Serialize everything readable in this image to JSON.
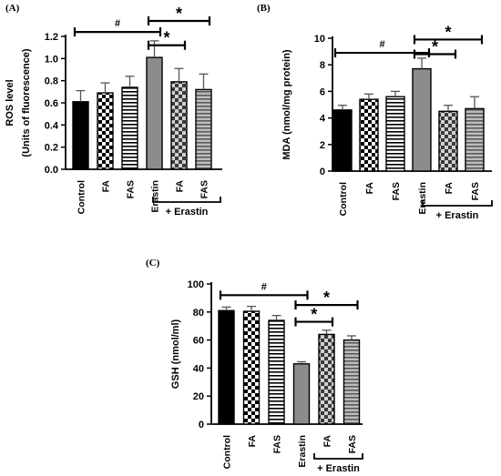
{
  "chart_data": [
    {
      "panel_label": "(A)",
      "type": "bar",
      "categories": [
        "Control",
        "FA",
        "FAS",
        "Erastin",
        "FA",
        "FAS"
      ],
      "values": [
        0.61,
        0.69,
        0.74,
        1.01,
        0.79,
        0.72
      ],
      "errors": [
        0.1,
        0.09,
        0.1,
        0.15,
        0.12,
        0.14
      ],
      "patterns": [
        "black",
        "checker",
        "hstripe",
        "gray",
        "darkchecker",
        "grayhstripe"
      ],
      "ylabel_line1": "ROS level",
      "ylabel_line2": "(Units of fluorescence)",
      "ylim": [
        0,
        1.2
      ],
      "yticks": [
        "0.0",
        "0.2",
        "0.4",
        "0.6",
        "0.8",
        "1.0",
        "1.2"
      ],
      "ytick_values": [
        0,
        0.2,
        0.4,
        0.6,
        0.8,
        1.0,
        1.2
      ],
      "group_label": "+ Erastin",
      "annotations": [
        {
          "symbol": "#",
          "from": 0,
          "to": 3,
          "level": 1.24
        },
        {
          "symbol": "*",
          "from": 3,
          "to": 4,
          "level": 1.12
        },
        {
          "symbol": "*",
          "from": 3,
          "to": 5,
          "level": 1.34
        }
      ]
    },
    {
      "panel_label": "(B)",
      "type": "bar",
      "categories": [
        "Control",
        "FA",
        "FAS",
        "Erastin",
        "FA",
        "FAS"
      ],
      "values": [
        4.6,
        5.4,
        5.6,
        7.7,
        4.5,
        4.7
      ],
      "errors": [
        0.35,
        0.4,
        0.4,
        0.8,
        0.45,
        0.9
      ],
      "patterns": [
        "black",
        "checker",
        "hstripe",
        "gray",
        "darkchecker",
        "grayhstripe"
      ],
      "ylabel_line1": "MDA (nmol/mg protein)",
      "ylabel_line2": "",
      "ylim": [
        0,
        10
      ],
      "yticks": [
        "0",
        "2",
        "4",
        "6",
        "8",
        "10"
      ],
      "ytick_values": [
        0,
        2,
        4,
        6,
        8,
        10
      ],
      "group_label": "+ Erastin",
      "annotations": [
        {
          "symbol": "#",
          "from": 0,
          "to": 3,
          "level": 8.9
        },
        {
          "symbol": "*",
          "from": 3,
          "to": 4,
          "level": 8.8
        },
        {
          "symbol": "*",
          "from": 3,
          "to": 5,
          "level": 9.9
        }
      ]
    },
    {
      "panel_label": "(C)",
      "type": "bar",
      "categories": [
        "Control",
        "FA",
        "FAS",
        "Erastin",
        "FA",
        "FAS"
      ],
      "values": [
        81,
        80.5,
        74,
        43,
        64,
        60
      ],
      "errors": [
        2.5,
        3.5,
        3.5,
        1.5,
        3,
        3
      ],
      "patterns": [
        "black",
        "checker",
        "hstripe",
        "gray",
        "darkchecker",
        "grayhstripe"
      ],
      "ylabel_line1": "GSH (nmol/ml)",
      "ylabel_line2": "",
      "ylim": [
        0,
        100
      ],
      "yticks": [
        "0",
        "20",
        "40",
        "60",
        "80",
        "100"
      ],
      "ytick_values": [
        0,
        20,
        40,
        60,
        80,
        100
      ],
      "group_label": "+ Erastin",
      "annotations": [
        {
          "symbol": "#",
          "from": 0,
          "to": 3,
          "level": 92
        },
        {
          "symbol": "*",
          "from": 3,
          "to": 4,
          "level": 73
        },
        {
          "symbol": "*",
          "from": 3,
          "to": 5,
          "level": 85
        }
      ]
    }
  ]
}
